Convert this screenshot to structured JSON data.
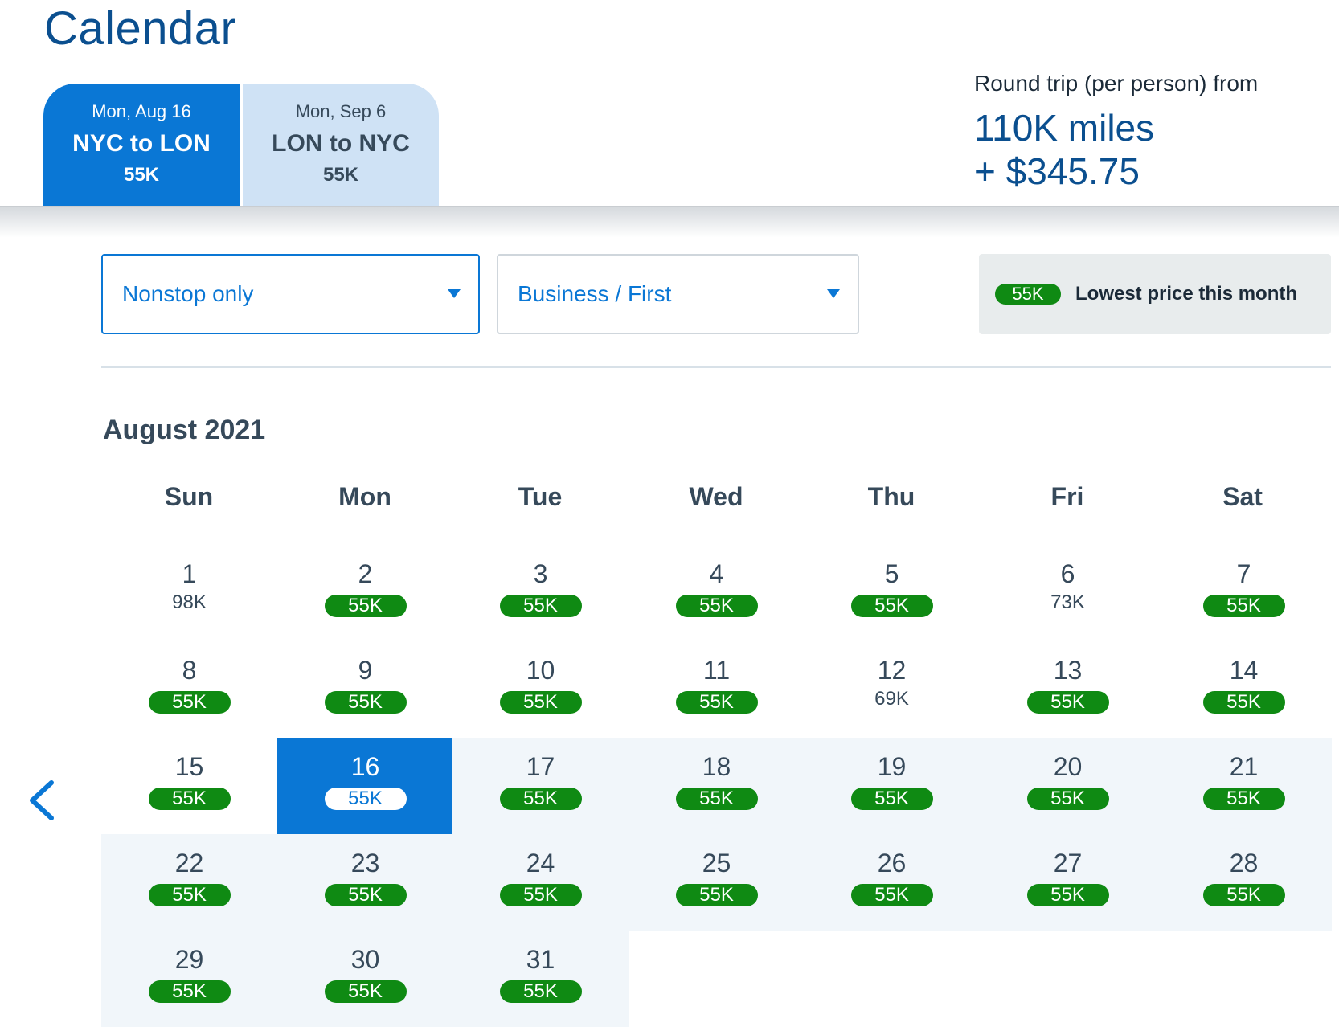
{
  "page": {
    "title": "Calendar"
  },
  "tabs": [
    {
      "date": "Mon, Aug 16",
      "route": "NYC to LON",
      "price": "55K"
    },
    {
      "date": "Mon, Sep 6",
      "route": "LON to NYC",
      "price": "55K"
    }
  ],
  "summary": {
    "label": "Round trip (per person) from",
    "miles": "110K miles",
    "cash": "+ $345.75"
  },
  "filters": {
    "stops": {
      "value": "Nonstop only",
      "icon": "chevron-down-icon"
    },
    "cabin": {
      "value": "Business / First",
      "icon": "chevron-down-icon"
    }
  },
  "legend": {
    "pill": "55K",
    "text": "Lowest price this month"
  },
  "calendar": {
    "month": "August 2021",
    "nav_prev_icon": "chevron-left-icon",
    "weekdays": [
      "Sun",
      "Mon",
      "Tue",
      "Wed",
      "Thu",
      "Fri",
      "Sat"
    ],
    "days": [
      {
        "day": "1",
        "price": "98K",
        "lowest": false
      },
      {
        "day": "2",
        "price": "55K",
        "lowest": true
      },
      {
        "day": "3",
        "price": "55K",
        "lowest": true
      },
      {
        "day": "4",
        "price": "55K",
        "lowest": true
      },
      {
        "day": "5",
        "price": "55K",
        "lowest": true
      },
      {
        "day": "6",
        "price": "73K",
        "lowest": false
      },
      {
        "day": "7",
        "price": "55K",
        "lowest": true
      },
      {
        "day": "8",
        "price": "55K",
        "lowest": true
      },
      {
        "day": "9",
        "price": "55K",
        "lowest": true
      },
      {
        "day": "10",
        "price": "55K",
        "lowest": true
      },
      {
        "day": "11",
        "price": "55K",
        "lowest": true
      },
      {
        "day": "12",
        "price": "69K",
        "lowest": false
      },
      {
        "day": "13",
        "price": "55K",
        "lowest": true
      },
      {
        "day": "14",
        "price": "55K",
        "lowest": true
      },
      {
        "day": "15",
        "price": "55K",
        "lowest": true
      },
      {
        "day": "16",
        "price": "55K",
        "lowest": true,
        "selected": true
      },
      {
        "day": "17",
        "price": "55K",
        "lowest": true,
        "in_range": true
      },
      {
        "day": "18",
        "price": "55K",
        "lowest": true,
        "in_range": true
      },
      {
        "day": "19",
        "price": "55K",
        "lowest": true,
        "in_range": true
      },
      {
        "day": "20",
        "price": "55K",
        "lowest": true,
        "in_range": true
      },
      {
        "day": "21",
        "price": "55K",
        "lowest": true,
        "in_range": true
      },
      {
        "day": "22",
        "price": "55K",
        "lowest": true,
        "in_range": true
      },
      {
        "day": "23",
        "price": "55K",
        "lowest": true,
        "in_range": true
      },
      {
        "day": "24",
        "price": "55K",
        "lowest": true,
        "in_range": true
      },
      {
        "day": "25",
        "price": "55K",
        "lowest": true,
        "in_range": true
      },
      {
        "day": "26",
        "price": "55K",
        "lowest": true,
        "in_range": true
      },
      {
        "day": "27",
        "price": "55K",
        "lowest": true,
        "in_range": true
      },
      {
        "day": "28",
        "price": "55K",
        "lowest": true,
        "in_range": true
      },
      {
        "day": "29",
        "price": "55K",
        "lowest": true,
        "in_range": true
      },
      {
        "day": "30",
        "price": "55K",
        "lowest": true,
        "in_range": true
      },
      {
        "day": "31",
        "price": "55K",
        "lowest": true,
        "in_range": true
      }
    ]
  },
  "colors": {
    "brand": "#0a77d5",
    "title": "#0b4f8f",
    "lowest": "#0f8a13",
    "range": "#f1f6fa",
    "tab_inactive": "#cfe2f5"
  }
}
